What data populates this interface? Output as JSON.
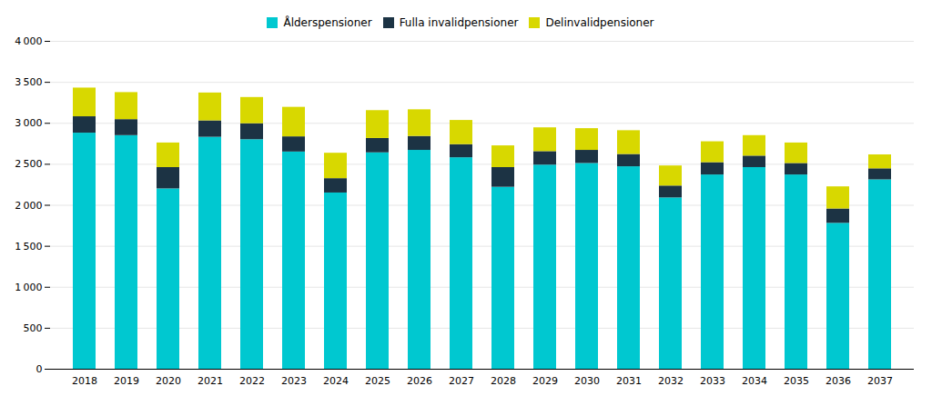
{
  "chart_data": {
    "type": "bar",
    "stacked": true,
    "legend": "top",
    "grid": true,
    "categories": [
      "2018",
      "2019",
      "2020",
      "2021",
      "2022",
      "2023",
      "2024",
      "2025",
      "2026",
      "2027",
      "2028",
      "2029",
      "2030",
      "2031",
      "2032",
      "2033",
      "2034",
      "2035",
      "2036",
      "2037"
    ],
    "series": [
      {
        "name": "Ålderspensioner",
        "color": "#00c8d0",
        "values": [
          2880,
          2850,
          2200,
          2830,
          2800,
          2650,
          2150,
          2640,
          2670,
          2580,
          2220,
          2490,
          2510,
          2470,
          2090,
          2370,
          2460,
          2370,
          1780,
          2310
        ]
      },
      {
        "name": "Fulla invalidpensioner",
        "color": "#1c3344",
        "values": [
          200,
          195,
          260,
          200,
          195,
          185,
          175,
          175,
          170,
          160,
          240,
          165,
          160,
          150,
          145,
          150,
          140,
          140,
          175,
          135
        ]
      },
      {
        "name": "Delinvalidpensioner",
        "color": "#d8d800",
        "values": [
          350,
          330,
          300,
          340,
          320,
          360,
          310,
          340,
          325,
          295,
          265,
          290,
          265,
          290,
          245,
          255,
          250,
          250,
          270,
          170
        ]
      }
    ],
    "ylim": [
      0,
      4000
    ],
    "yticks": [
      0,
      500,
      {
        "value": 1000,
        "label": "1 000"
      },
      {
        "value": 1500,
        "label": "1 500"
      },
      {
        "value": 2000,
        "label": "2 000"
      },
      {
        "value": 2500,
        "label": "2 500"
      },
      {
        "value": 3000,
        "label": "3 000"
      },
      {
        "value": 3500,
        "label": "3 500"
      },
      {
        "value": 4000,
        "label": "4 000"
      }
    ]
  }
}
